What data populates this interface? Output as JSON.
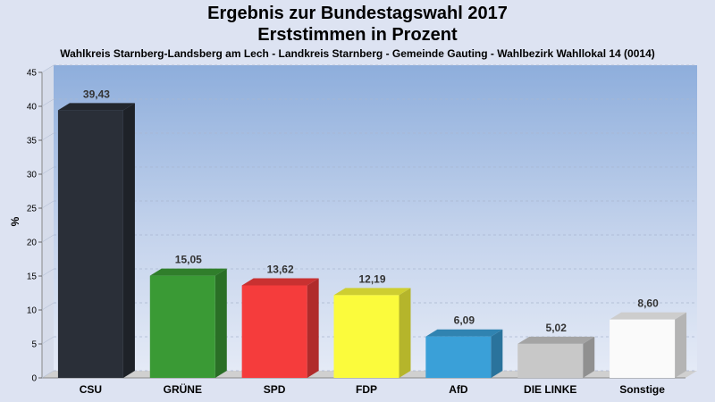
{
  "chart_data": {
    "type": "bar",
    "title": "Ergebnis zur Bundestagswahl 2017",
    "subtitle": "Erststimmen in Prozent",
    "caption": "Wahlkreis Starnberg-Landsberg am Lech - Landkreis Starnberg - Gemeinde Gauting - Wahlbezirk Wahllokal 14 (0014)",
    "xlabel": "",
    "ylabel": "%",
    "ylim": [
      0,
      45
    ],
    "yticks": [
      0,
      5,
      10,
      15,
      20,
      25,
      30,
      35,
      40,
      45
    ],
    "grid": true,
    "categories": [
      "CSU",
      "GRÜNE",
      "SPD",
      "FDP",
      "AfD",
      "DIE LINKE",
      "Sonstige"
    ],
    "values": [
      39.43,
      15.05,
      13.62,
      12.19,
      6.09,
      5.02,
      8.6
    ],
    "value_labels": [
      "39,43",
      "15,05",
      "13,62",
      "12,19",
      "6,09",
      "5,02",
      "8,60"
    ],
    "colors": [
      "#2a2f38",
      "#3a9a35",
      "#f53c3c",
      "#fbfb3c",
      "#3aa0d8",
      "#c8c8c8",
      "#fafafa"
    ]
  }
}
